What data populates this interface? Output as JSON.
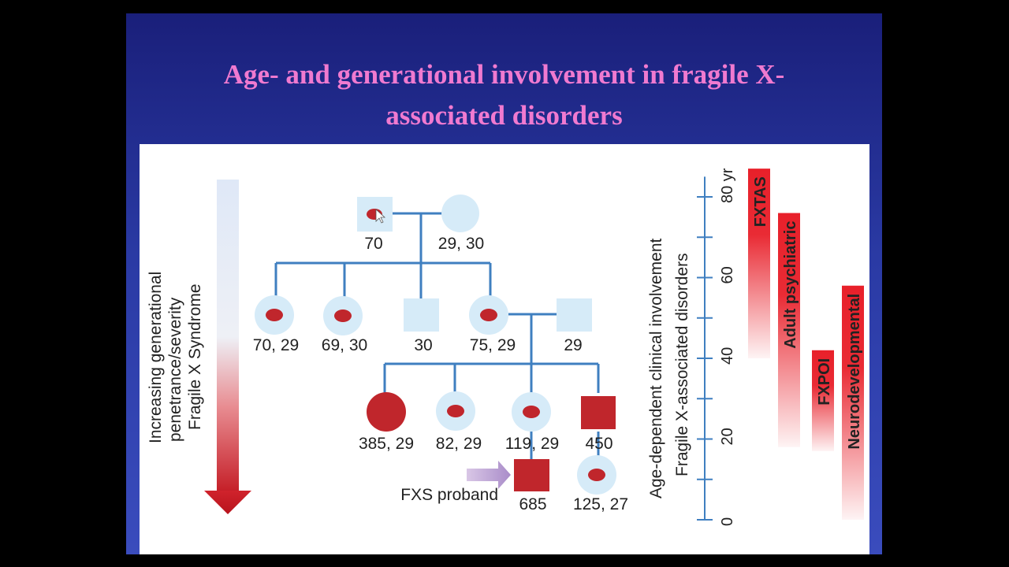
{
  "title": {
    "line1": "Age- and generational  involvement in fragile X-",
    "line2": "associated disorders"
  },
  "left_arrow": {
    "line1": "Increasing generational",
    "line2": "penetrance/severity",
    "line3": "Fragile X Syndrome"
  },
  "pedigree": {
    "gen1": [
      {
        "shape": "square",
        "affected": "dot",
        "label": "70"
      },
      {
        "shape": "circle",
        "affected": "none",
        "label": "29, 30"
      }
    ],
    "gen2": [
      {
        "shape": "circle",
        "affected": "dot",
        "label": "70, 29"
      },
      {
        "shape": "circle",
        "affected": "dot",
        "label": "69, 30"
      },
      {
        "shape": "square",
        "affected": "none",
        "label": "30"
      },
      {
        "shape": "circle",
        "affected": "dot",
        "label": "75, 29"
      },
      {
        "shape": "square",
        "affected": "none",
        "label": "29"
      }
    ],
    "gen3": [
      {
        "shape": "circle",
        "affected": "full",
        "label": "385, 29"
      },
      {
        "shape": "circle",
        "affected": "dot",
        "label": "82, 29"
      },
      {
        "shape": "circle",
        "affected": "dot",
        "label": "119, 29"
      },
      {
        "shape": "square",
        "affected": "full",
        "label": "450"
      }
    ],
    "gen4": [
      {
        "shape": "square",
        "affected": "full",
        "label": "685"
      },
      {
        "shape": "circle",
        "affected": "dot",
        "label": "125, 27"
      }
    ],
    "proband_label": "FXS proband"
  },
  "age_axis": {
    "title_line1": "Age-dependent clinical involvement",
    "title_line2": "Fragile X-associated disorders",
    "tick_labels": [
      "0",
      "20",
      "40",
      "60",
      "80 yr"
    ]
  },
  "disorders": [
    {
      "name": "FXTAS",
      "from_age": 40,
      "to_age": 87
    },
    {
      "name": "Adult psychiatric",
      "from_age": 18,
      "to_age": 76
    },
    {
      "name": "FXPOI",
      "from_age": 17,
      "to_age": 42
    },
    {
      "name": "Neurodevelopmental",
      "from_age": 0,
      "to_age": 58
    }
  ],
  "colors": {
    "slide_background": "#2a3aa4",
    "title": "#f07ad0",
    "pedigree_fill": "#d6ebf8",
    "affected": "#c0262c",
    "lines": "#3f7fc0",
    "disorder_bar": "#e8202a"
  }
}
